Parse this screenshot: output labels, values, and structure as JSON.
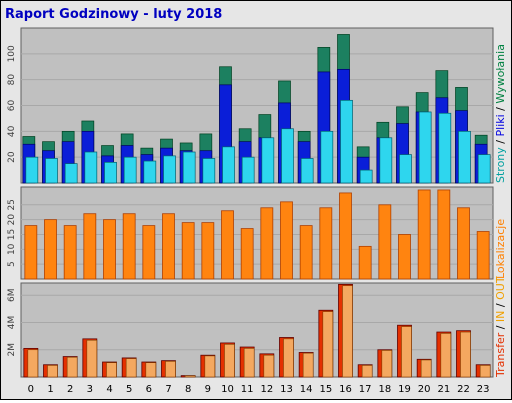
{
  "title": "Raport Godzinowy -  luty 2018",
  "colors": {
    "background": "#e6e6e6",
    "plot_bg": "#c0c0c0",
    "strony": "#00a0a0",
    "pliki": "#0000e0",
    "wywolania": "#008040",
    "wyw_fill": "#1c8060",
    "pliki_fill": "#0a1ed8",
    "strony_fill": "#2ed6ee",
    "kb_fill": "#ff8410",
    "kb_dark": "#b04000",
    "in_fill": "#e43000",
    "out_fill": "#f4a860",
    "out_label": "#f0a000",
    "title": "#0000c0"
  },
  "chart_data": [
    {
      "type": "bar",
      "title": "Raport Godzinowy -  luty 2018",
      "categories": [
        "0",
        "1",
        "2",
        "3",
        "4",
        "5",
        "6",
        "7",
        "8",
        "9",
        "10",
        "11",
        "12",
        "13",
        "14",
        "15",
        "16",
        "17",
        "18",
        "19",
        "20",
        "21",
        "22",
        "23"
      ],
      "ylim": [
        0,
        120
      ],
      "yticks": [
        "20",
        "40",
        "60",
        "80",
        "100"
      ],
      "side_label": [
        {
          "text": "Strony",
          "color": "#00a0a0"
        },
        {
          "text": " / ",
          "color": "#000000"
        },
        {
          "text": "Pliki",
          "color": "#0000e0"
        },
        {
          "text": " / ",
          "color": "#000000"
        },
        {
          "text": "Wywołania",
          "color": "#008040"
        }
      ],
      "series": [
        {
          "name": "Wywołania",
          "values": [
            36,
            32,
            40,
            48,
            29,
            38,
            27,
            34,
            31,
            38,
            90,
            42,
            53,
            79,
            40,
            105,
            115,
            28,
            47,
            59,
            70,
            87,
            74,
            37
          ]
        },
        {
          "name": "Pliki",
          "values": [
            30,
            25,
            32,
            40,
            21,
            29,
            22,
            27,
            25,
            25,
            76,
            32,
            35,
            62,
            32,
            86,
            88,
            20,
            35,
            46,
            55,
            66,
            56,
            30
          ]
        },
        {
          "name": "Strony",
          "values": [
            20,
            19,
            15,
            24,
            16,
            20,
            17,
            21,
            24,
            19,
            28,
            20,
            35,
            42,
            19,
            40,
            64,
            10,
            35,
            22,
            55,
            54,
            40,
            22
          ]
        }
      ]
    },
    {
      "type": "bar",
      "categories": [
        "0",
        "1",
        "2",
        "3",
        "4",
        "5",
        "6",
        "7",
        "8",
        "9",
        "10",
        "11",
        "12",
        "13",
        "14",
        "15",
        "16",
        "17",
        "18",
        "19",
        "20",
        "21",
        "22",
        "23"
      ],
      "ylim": [
        0,
        31
      ],
      "yticks": [
        "5",
        "10",
        "15",
        "20",
        "25"
      ],
      "side_label": [
        {
          "text": "Lokalizacje",
          "color": "#ff8000"
        }
      ],
      "series": [
        {
          "name": "Lokalizacje",
          "values": [
            18,
            20,
            18,
            22,
            20,
            22,
            18,
            22,
            19,
            19,
            23,
            17,
            24,
            26,
            18,
            24,
            29,
            11,
            25,
            15,
            30,
            30,
            24,
            16
          ]
        }
      ]
    },
    {
      "type": "bar",
      "categories": [
        "0",
        "1",
        "2",
        "3",
        "4",
        "5",
        "6",
        "7",
        "8",
        "9",
        "10",
        "11",
        "12",
        "13",
        "14",
        "15",
        "16",
        "17",
        "18",
        "19",
        "20",
        "21",
        "22",
        "23"
      ],
      "ylim": [
        0,
        6900000
      ],
      "yticks": [
        "2M",
        "4M",
        "6M"
      ],
      "side_label": [
        {
          "text": "Transfer",
          "color": "#e43000"
        },
        {
          "text": " / ",
          "color": "#000000"
        },
        {
          "text": "IN",
          "color": "#f0a000"
        },
        {
          "text": " / ",
          "color": "#000000"
        },
        {
          "text": "OUT",
          "color": "#f0a000"
        }
      ],
      "series": [
        {
          "name": "Transfer",
          "values": [
            2100000,
            900000,
            1500000,
            2800000,
            1100000,
            1400000,
            1100000,
            1200000,
            100000,
            1600000,
            2500000,
            2200000,
            1700000,
            2900000,
            1800000,
            4900000,
            6800000,
            900000,
            2000000,
            3800000,
            1300000,
            3300000,
            3400000,
            900000
          ]
        },
        {
          "name": "OUT",
          "values": [
            2000000,
            850000,
            1450000,
            2700000,
            1050000,
            1350000,
            1050000,
            1150000,
            90000,
            1550000,
            2400000,
            2100000,
            1600000,
            2800000,
            1750000,
            4800000,
            6700000,
            850000,
            1950000,
            3700000,
            1250000,
            3200000,
            3300000,
            850000
          ]
        }
      ]
    }
  ]
}
